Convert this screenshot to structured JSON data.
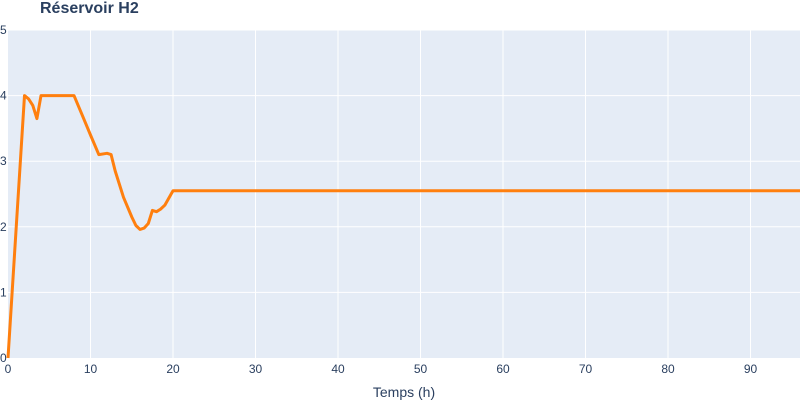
{
  "chart_data": {
    "type": "line",
    "title": "Réservoir H2",
    "xlabel": "Temps (h)",
    "ylabel": "",
    "xlim": [
      0,
      96
    ],
    "ylim": [
      0,
      5
    ],
    "x_ticks": [
      0,
      10,
      20,
      30,
      40,
      50,
      60,
      70,
      80,
      90
    ],
    "y_ticks": [
      0,
      1,
      2,
      3,
      4,
      5
    ],
    "grid": true,
    "legend": "none",
    "colors": {
      "plot_background": "#e5ecf6",
      "grid": "#ffffff",
      "line": "#ff7f0e",
      "text": "#2a3f5f"
    },
    "series": [
      {
        "x": [
          0,
          2,
          2.5,
          3,
          3.5,
          4,
          8,
          9,
          10,
          11,
          12,
          12.5,
          13,
          14,
          15,
          15.5,
          16,
          16.5,
          17,
          17.5,
          18,
          18.5,
          19,
          20,
          96
        ],
        "y": [
          0,
          4.0,
          3.95,
          3.85,
          3.65,
          4.0,
          4.0,
          3.7,
          3.4,
          3.1,
          3.12,
          3.1,
          2.85,
          2.45,
          2.15,
          2.02,
          1.96,
          1.98,
          2.05,
          2.25,
          2.23,
          2.27,
          2.33,
          2.55,
          2.55
        ]
      }
    ]
  }
}
